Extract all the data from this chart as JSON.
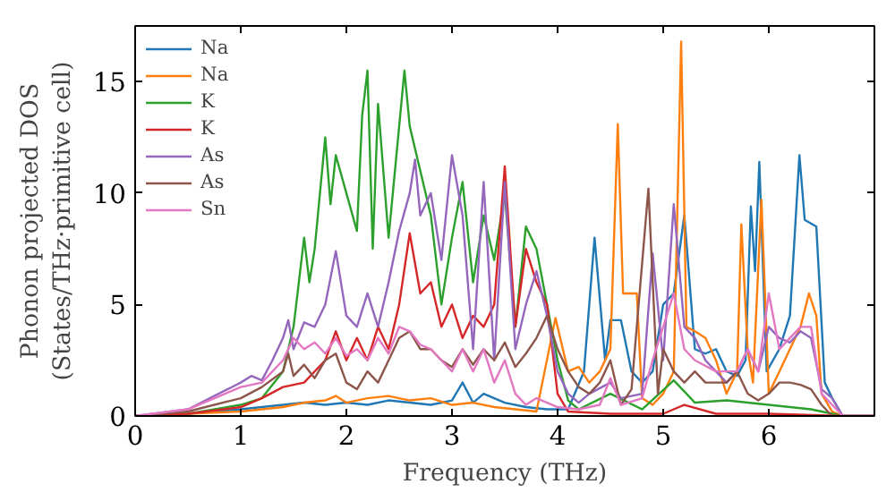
{
  "chart_data": {
    "type": "line",
    "xlabel": "Frequency (THz)",
    "ylabel": "Phonon projected DOS\n(States/THz·primitive cell)",
    "xlim": [
      0,
      7
    ],
    "ylim": [
      0,
      17.5
    ],
    "xticks": [
      0,
      1,
      2,
      3,
      4,
      5,
      6
    ],
    "yticks": [
      0,
      5,
      10,
      15
    ],
    "legend": "top left",
    "grid": false,
    "series": [
      {
        "name": "Na",
        "color": "#1f77b4",
        "x": [
          0,
          0.5,
          1.0,
          1.4,
          1.6,
          1.8,
          2.0,
          2.2,
          2.4,
          2.6,
          2.8,
          3.0,
          3.1,
          3.2,
          3.3,
          3.5,
          3.7,
          3.9,
          4.1,
          4.25,
          4.35,
          4.45,
          4.5,
          4.6,
          4.7,
          4.8,
          4.9,
          5.0,
          5.1,
          5.2,
          5.3,
          5.4,
          5.5,
          5.6,
          5.7,
          5.78,
          5.83,
          5.87,
          5.91,
          5.98,
          6.1,
          6.2,
          6.29,
          6.34,
          6.45,
          6.53,
          6.6,
          6.7,
          7.0
        ],
        "values": [
          0,
          0.1,
          0.3,
          0.5,
          0.6,
          0.5,
          0.6,
          0.5,
          0.7,
          0.6,
          0.5,
          0.7,
          1.5,
          0.6,
          1.0,
          0.6,
          0.4,
          0.3,
          0.3,
          2.0,
          8.0,
          2.5,
          4.3,
          4.3,
          2.0,
          1.5,
          2.0,
          5.0,
          5.5,
          9.0,
          3.0,
          2.8,
          3.0,
          2.0,
          1.8,
          2.5,
          9.4,
          6.5,
          11.4,
          2.0,
          3.0,
          4.5,
          11.7,
          8.8,
          8.5,
          1.5,
          0.8,
          0,
          0
        ]
      },
      {
        "name": "Na",
        "color": "#ff7f0e",
        "x": [
          0,
          0.5,
          1.0,
          1.4,
          1.6,
          1.8,
          1.9,
          2.0,
          2.2,
          2.4,
          2.6,
          2.8,
          3.0,
          3.2,
          3.4,
          3.6,
          3.8,
          3.98,
          4.1,
          4.2,
          4.3,
          4.4,
          4.5,
          4.57,
          4.62,
          4.75,
          4.8,
          4.9,
          5.0,
          5.1,
          5.17,
          5.22,
          5.3,
          5.4,
          5.5,
          5.6,
          5.7,
          5.74,
          5.8,
          5.85,
          5.93,
          6.0,
          6.1,
          6.2,
          6.3,
          6.38,
          6.45,
          6.5,
          6.6,
          6.7,
          7.0
        ],
        "values": [
          0,
          0.1,
          0.2,
          0.4,
          0.6,
          0.7,
          0.9,
          0.6,
          0.8,
          0.9,
          0.7,
          0.8,
          0.5,
          0.6,
          0.4,
          0.3,
          0.2,
          4.4,
          2.0,
          2.2,
          1.5,
          2.0,
          3.0,
          13.1,
          5.5,
          5.5,
          0.8,
          0.5,
          1.0,
          2.0,
          16.8,
          4.0,
          3.8,
          3.5,
          2.5,
          1.0,
          2.0,
          8.6,
          3.0,
          1.5,
          9.7,
          1.0,
          2.0,
          3.0,
          4.0,
          5.5,
          4.5,
          1.0,
          0.2,
          0,
          0
        ]
      },
      {
        "name": "K",
        "color": "#2ca02c",
        "x": [
          0,
          0.5,
          1.0,
          1.2,
          1.4,
          1.5,
          1.6,
          1.65,
          1.7,
          1.8,
          1.85,
          1.9,
          2.0,
          2.1,
          2.15,
          2.2,
          2.25,
          2.3,
          2.4,
          2.5,
          2.55,
          2.6,
          2.7,
          2.8,
          2.9,
          3.0,
          3.1,
          3.2,
          3.3,
          3.4,
          3.5,
          3.6,
          3.7,
          3.8,
          3.9,
          4.0,
          4.1,
          4.2,
          4.5,
          4.8,
          5.1,
          5.3,
          5.6,
          6.0,
          6.4,
          6.7,
          7.0
        ],
        "values": [
          0,
          0.1,
          0.5,
          0.8,
          2.0,
          4.0,
          8.0,
          6.0,
          7.5,
          12.5,
          9.5,
          11.7,
          10.0,
          8.3,
          13.5,
          15.5,
          7.5,
          14.0,
          8.0,
          13.0,
          15.5,
          13.0,
          11.0,
          9.0,
          5.0,
          8.0,
          10.5,
          6.0,
          9.0,
          7.0,
          10.0,
          4.0,
          8.5,
          7.5,
          5.0,
          2.5,
          0.7,
          0.3,
          1.0,
          0.3,
          1.6,
          0.6,
          0.7,
          0.5,
          0.3,
          0,
          0
        ]
      },
      {
        "name": "K",
        "color": "#d62728",
        "x": [
          0,
          0.5,
          1.0,
          1.2,
          1.4,
          1.6,
          1.8,
          1.9,
          2.0,
          2.1,
          2.2,
          2.3,
          2.4,
          2.5,
          2.6,
          2.7,
          2.8,
          2.9,
          3.0,
          3.1,
          3.2,
          3.3,
          3.4,
          3.5,
          3.6,
          3.7,
          3.8,
          3.9,
          4.0,
          4.1,
          4.5,
          5.0,
          5.2,
          5.5,
          6.0,
          6.7,
          7.0
        ],
        "values": [
          0,
          0.1,
          0.4,
          0.8,
          1.3,
          1.5,
          2.5,
          3.8,
          2.5,
          3.5,
          2.5,
          4.0,
          3.0,
          5.0,
          8.2,
          5.5,
          6.0,
          4.0,
          5.0,
          3.5,
          4.5,
          4.0,
          5.0,
          11.2,
          4.0,
          7.5,
          6.0,
          5.0,
          1.0,
          0.2,
          0.1,
          0.1,
          0.5,
          0.1,
          0.1,
          0,
          0
        ]
      },
      {
        "name": "As",
        "color": "#9467bd",
        "x": [
          0,
          0.5,
          1.0,
          1.1,
          1.2,
          1.3,
          1.4,
          1.45,
          1.5,
          1.6,
          1.7,
          1.8,
          1.9,
          2.0,
          2.1,
          2.2,
          2.3,
          2.4,
          2.5,
          2.6,
          2.65,
          2.7,
          2.8,
          2.9,
          3.0,
          3.1,
          3.2,
          3.3,
          3.4,
          3.5,
          3.6,
          3.7,
          3.8,
          3.9,
          4.0,
          4.1,
          4.2,
          4.3,
          4.5,
          4.6,
          4.8,
          4.9,
          5.0,
          5.1,
          5.2,
          5.3,
          5.4,
          5.5,
          5.6,
          5.7,
          5.8,
          5.9,
          6.0,
          6.1,
          6.2,
          6.3,
          6.4,
          6.5,
          6.6,
          6.7,
          7.0
        ],
        "values": [
          0,
          0.3,
          1.5,
          1.8,
          1.6,
          2.5,
          3.5,
          4.3,
          3.0,
          4.2,
          4.0,
          5.0,
          7.4,
          4.5,
          4.0,
          5.5,
          4.0,
          6.0,
          8.3,
          10.0,
          11.5,
          9.0,
          10.0,
          7.0,
          11.7,
          9.0,
          3.0,
          10.5,
          2.5,
          10.5,
          3.0,
          5.0,
          6.5,
          4.5,
          2.0,
          1.0,
          0.6,
          1.0,
          1.5,
          0.8,
          1.0,
          7.3,
          2.5,
          9.5,
          4.0,
          3.5,
          2.5,
          2.0,
          1.5,
          2.0,
          3.0,
          2.0,
          4.0,
          3.5,
          3.3,
          3.8,
          3.5,
          1.2,
          0.8,
          0,
          0
        ]
      },
      {
        "name": "As",
        "color": "#8c564b",
        "x": [
          0,
          0.5,
          1.0,
          1.2,
          1.4,
          1.45,
          1.5,
          1.6,
          1.7,
          1.8,
          1.9,
          2.0,
          2.1,
          2.2,
          2.3,
          2.4,
          2.5,
          2.6,
          2.7,
          2.8,
          2.9,
          3.0,
          3.1,
          3.2,
          3.3,
          3.4,
          3.5,
          3.6,
          3.7,
          3.8,
          3.9,
          4.0,
          4.1,
          4.2,
          4.3,
          4.4,
          4.5,
          4.6,
          4.7,
          4.86,
          4.95,
          5.0,
          5.1,
          5.2,
          5.3,
          5.4,
          5.6,
          5.7,
          5.8,
          5.9,
          6.0,
          6.1,
          6.2,
          6.3,
          6.4,
          6.5,
          6.6,
          7.0
        ],
        "values": [
          0,
          0.2,
          0.8,
          1.3,
          2.0,
          2.8,
          1.8,
          2.3,
          1.7,
          2.5,
          2.8,
          1.5,
          1.2,
          2.0,
          1.5,
          2.5,
          3.5,
          3.8,
          3.0,
          3.0,
          2.5,
          2.2,
          3.0,
          2.3,
          3.0,
          2.5,
          3.3,
          2.2,
          2.8,
          3.5,
          4.5,
          3.0,
          2.0,
          1.3,
          1.0,
          1.5,
          2.5,
          0.5,
          1.2,
          10.2,
          1.0,
          3.0,
          2.0,
          1.5,
          2.0,
          1.5,
          1.5,
          2.0,
          1.0,
          0.7,
          1.0,
          1.5,
          1.5,
          1.4,
          1.2,
          0.5,
          0,
          0
        ]
      },
      {
        "name": "Sn",
        "color": "#e377c2",
        "x": [
          0,
          0.5,
          1.0,
          1.2,
          1.4,
          1.5,
          1.6,
          1.7,
          1.8,
          1.9,
          2.0,
          2.1,
          2.2,
          2.3,
          2.4,
          2.5,
          2.6,
          2.7,
          2.8,
          2.9,
          3.0,
          3.1,
          3.2,
          3.3,
          3.4,
          3.5,
          3.6,
          3.7,
          3.8,
          3.9,
          4.0,
          4.2,
          4.4,
          4.5,
          4.6,
          4.8,
          4.9,
          5.0,
          5.1,
          5.2,
          5.3,
          5.5,
          5.7,
          5.8,
          5.9,
          6.0,
          6.1,
          6.2,
          6.3,
          6.4,
          6.5,
          6.6,
          6.7,
          7.0
        ],
        "values": [
          0,
          0.3,
          1.3,
          1.5,
          2.5,
          3.5,
          3.0,
          3.3,
          2.8,
          3.5,
          2.7,
          3.0,
          2.5,
          3.5,
          2.8,
          4.0,
          3.8,
          3.2,
          3.0,
          2.5,
          2.0,
          3.0,
          2.0,
          3.0,
          1.5,
          2.5,
          1.0,
          0.5,
          0.8,
          0.6,
          0.4,
          0.3,
          0.5,
          1.7,
          0.5,
          0.8,
          2.5,
          4.0,
          5.5,
          3.0,
          2.5,
          2.0,
          2.0,
          3.0,
          2.0,
          5.5,
          3.0,
          3.5,
          4.0,
          4.0,
          1.0,
          0.5,
          0,
          0
        ]
      }
    ]
  }
}
